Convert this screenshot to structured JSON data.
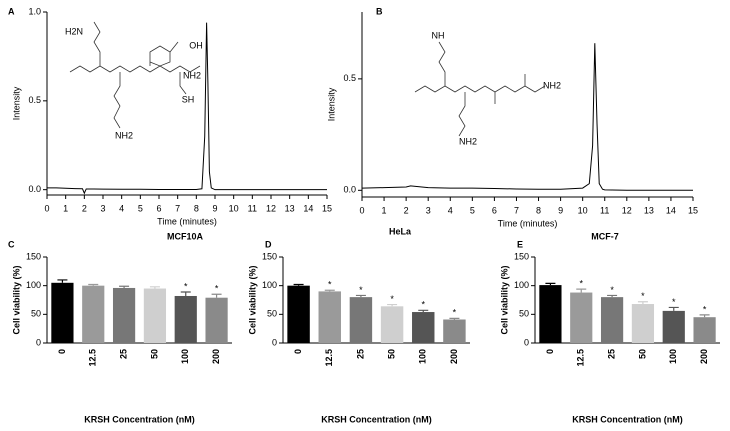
{
  "chart_data": [
    {
      "type": "line",
      "panel": "A",
      "xlabel": "Time (minutes)",
      "ylabel": "Intensity",
      "structure_labels": [
        "H2N",
        "OH",
        "NH2",
        "SH",
        "NH2"
      ],
      "x": [
        0,
        0.5,
        1,
        1.5,
        1.9,
        2,
        2.1,
        2.5,
        3,
        4,
        5,
        6,
        7,
        8,
        8.3,
        8.45,
        8.55,
        8.62,
        8.7,
        8.8,
        9,
        10,
        11,
        12,
        13,
        14,
        15
      ],
      "series": [
        {
          "color": "#000000",
          "values": [
            0.01,
            0.01,
            0.008,
            0.006,
            0.005,
            -0.02,
            0.004,
            0.004,
            0.003,
            0.002,
            0.002,
            0.001,
            0.001,
            0.001,
            0.005,
            0.3,
            0.94,
            0.6,
            0.1,
            0.01,
            0,
            0,
            0,
            0,
            0,
            0,
            0
          ]
        }
      ],
      "xlim": [
        0,
        15
      ],
      "xticks": [
        0,
        1,
        2,
        3,
        4,
        5,
        6,
        7,
        8,
        9,
        10,
        11,
        12,
        13,
        14,
        15
      ],
      "ylim": [
        -0.03,
        1.0
      ],
      "yticks": [
        {
          "value": 0,
          "label": "0.0"
        },
        {
          "value": 0.5,
          "label": "0.5"
        },
        {
          "value": 1,
          "label": "1.0"
        }
      ]
    },
    {
      "type": "line",
      "panel": "B",
      "xlabel": "Time (minutes)",
      "ylabel": "Intensity",
      "structure_labels": [
        "NH",
        "NH2",
        "NH2"
      ],
      "x": [
        0,
        1,
        2,
        2.2,
        3,
        4,
        5,
        6,
        7,
        8,
        9,
        10,
        10.3,
        10.45,
        10.55,
        10.65,
        10.75,
        10.9,
        11,
        12,
        13,
        14,
        15
      ],
      "series": [
        {
          "color": "#000000",
          "values": [
            0.01,
            0.012,
            0.015,
            0.02,
            0.012,
            0.01,
            0.01,
            0.008,
            0.006,
            0.005,
            0.005,
            0.01,
            0.03,
            0.2,
            0.66,
            0.3,
            0.03,
            0.005,
            0.002,
            0,
            0,
            0,
            0
          ]
        }
      ],
      "xlim": [
        0,
        15
      ],
      "xticks": [
        0,
        1,
        2,
        3,
        4,
        5,
        6,
        7,
        8,
        9,
        10,
        11,
        12,
        13,
        14,
        15
      ],
      "ylim": [
        -0.03,
        0.8
      ],
      "yticks": [
        {
          "value": 0,
          "label": "0.0"
        },
        {
          "value": 0.5,
          "label": "0.5"
        }
      ]
    },
    {
      "type": "bar",
      "panel": "C",
      "title": "MCF10A",
      "xlabel": "KRSH Concentration (nM)",
      "ylabel": "Cell viability (%)",
      "categories": [
        "0",
        "12.5",
        "25",
        "50",
        "100",
        "200"
      ],
      "values": [
        105,
        100,
        96,
        95,
        82,
        79
      ],
      "errors": [
        5,
        2,
        3,
        3,
        7,
        6
      ],
      "significance": [
        null,
        null,
        null,
        null,
        "*",
        "*"
      ],
      "colors": [
        "#000000",
        "#9a9a9a",
        "#777777",
        "#cfcfcf",
        "#555555",
        "#8a8a8a"
      ],
      "ylim": [
        0,
        150
      ],
      "yticks": [
        0,
        50,
        100,
        150
      ]
    },
    {
      "type": "bar",
      "panel": "D",
      "title": "HeLa",
      "xlabel": "KRSH Concentration (nM)",
      "ylabel": "Cell viability (%)",
      "categories": [
        "0",
        "12.5",
        "25",
        "50",
        "100",
        "200"
      ],
      "values": [
        100,
        90,
        80,
        64,
        54,
        41
      ],
      "errors": [
        2,
        2,
        3,
        3,
        3,
        2
      ],
      "significance": [
        null,
        "*",
        "*",
        "*",
        "*",
        "*"
      ],
      "colors": [
        "#000000",
        "#9a9a9a",
        "#777777",
        "#cfcfcf",
        "#555555",
        "#8a8a8a"
      ],
      "ylim": [
        0,
        150
      ],
      "yticks": [
        0,
        50,
        100,
        150
      ]
    },
    {
      "type": "bar",
      "panel": "E",
      "title": "MCF-7",
      "xlabel": "KRSH Concentration (nM)",
      "ylabel": "Cell viability (%)",
      "categories": [
        "0",
        "12.5",
        "25",
        "50",
        "100",
        "200"
      ],
      "values": [
        101,
        88,
        80,
        68,
        56,
        45
      ],
      "errors": [
        3,
        6,
        3,
        4,
        6,
        4
      ],
      "significance": [
        null,
        "*",
        "*",
        "*",
        "*",
        "*"
      ],
      "colors": [
        "#000000",
        "#9a9a9a",
        "#777777",
        "#cfcfcf",
        "#555555",
        "#8a8a8a"
      ],
      "ylim": [
        0,
        150
      ],
      "yticks": [
        0,
        50,
        100,
        150
      ]
    }
  ]
}
